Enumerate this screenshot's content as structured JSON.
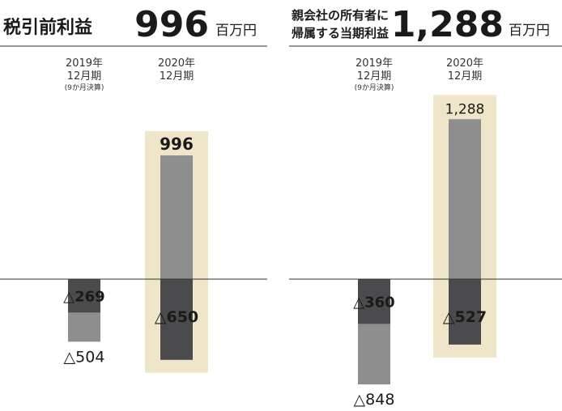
{
  "colors": {
    "highlight": "#efe5c8",
    "bar_light": "#8e8e8e",
    "bar_dark": "#4b4b4d",
    "baseline": "#333333",
    "text": "#1a1a1a"
  },
  "chart_data": [
    {
      "type": "bar",
      "title": "税引前利益",
      "headline_value": "996",
      "headline_unit": "百万円",
      "categories": [
        {
          "year": "2019年",
          "period": "12月期",
          "note": "(9か月決算)"
        },
        {
          "year": "2020年",
          "period": "12月期",
          "note": ""
        }
      ],
      "bars": [
        {
          "total": -504,
          "total_label": "△504",
          "segment": -269,
          "segment_label": "△269",
          "highlighted": false
        },
        {
          "total": 996,
          "total_label": "996",
          "segment": -650,
          "segment_label": "△650",
          "highlighted": true
        }
      ],
      "ylim": [
        -650,
        1060
      ]
    },
    {
      "type": "bar",
      "title_lines": [
        "親会社の所有者に",
        "帰属する当期利益"
      ],
      "headline_value": "1,288",
      "headline_unit": "百万円",
      "categories": [
        {
          "year": "2019年",
          "period": "12月期",
          "note": "(9か月決算)"
        },
        {
          "year": "2020年",
          "period": "12月期",
          "note": ""
        }
      ],
      "bars": [
        {
          "total": -848,
          "total_label": "△848",
          "segment": -360,
          "segment_label": "△360",
          "highlighted": false
        },
        {
          "total": 1288,
          "total_label": "1,288",
          "segment": -527,
          "segment_label": "△527",
          "highlighted": true
        }
      ],
      "ylim": [
        -848,
        1370
      ]
    }
  ]
}
